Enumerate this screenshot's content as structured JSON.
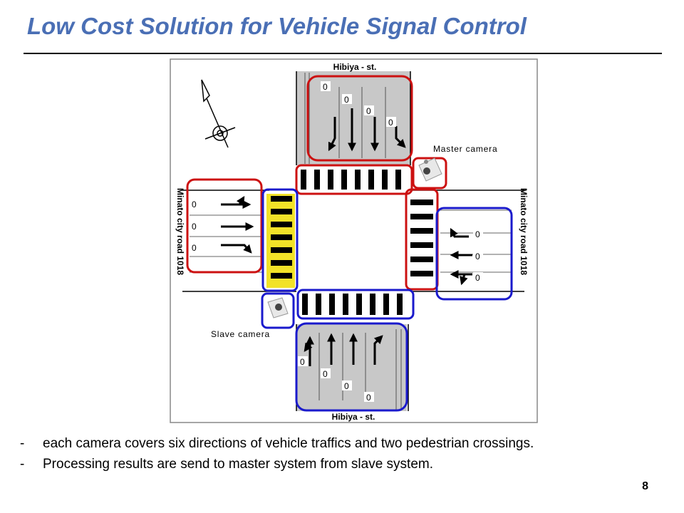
{
  "slide": {
    "title": "Low Cost Solution for Vehicle Signal Control",
    "page_number": "8"
  },
  "diagram": {
    "street_top": "Hibiya - st.",
    "street_bottom": "Hibiya - st.",
    "road_left": "Minato city road 1018",
    "road_right": "Minato city road 1018",
    "master_camera_label": "Master camera",
    "slave_camera_label": "Slave camera",
    "lane_counts": {
      "north": [
        "0",
        "0",
        "0",
        "0"
      ],
      "west": [
        "0",
        "0",
        "0"
      ],
      "east": [
        "0",
        "0",
        "0"
      ],
      "south": [
        "0",
        "0",
        "0",
        "0"
      ]
    },
    "colors": {
      "master_coverage": "#cc1111",
      "slave_coverage": "#1a1acc",
      "crosswalk_highlight": "#f2e228",
      "road_surface": "#c8c8c8"
    }
  },
  "bullets": [
    {
      "dash": "-",
      "text": "each camera covers six directions of vehicle traffics and two pedestrian crossings."
    },
    {
      "dash": "-",
      "text": "Processing results are send to master system from slave system."
    }
  ]
}
